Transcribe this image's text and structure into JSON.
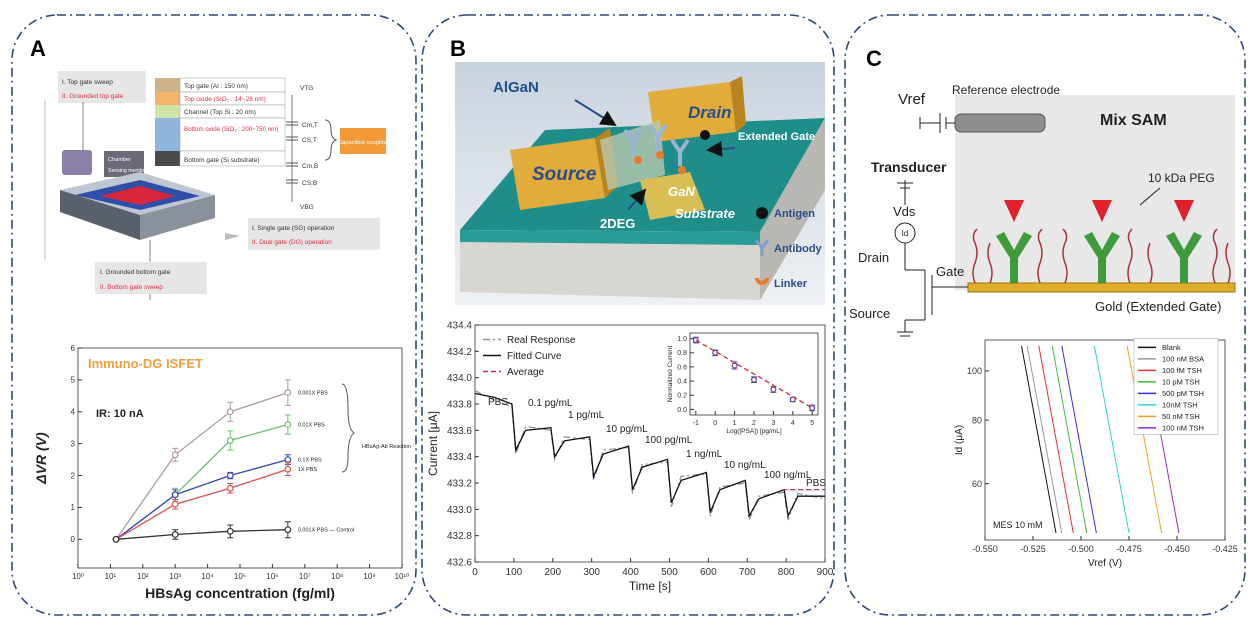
{
  "panel_labels": [
    "A",
    "B",
    "C"
  ],
  "diagram": {
    "A": [
      "I. Top gate sweep",
      "II. Grounded top gate",
      "Top gate (Al : 150 nm)",
      "Top oxide (SiO₂ : 14~28 nm)",
      "Channel (Top Si : 20 nm)",
      "Bottom oxide (SiO₂ : 200~750 nm)",
      "Bottom gate (Si substrate)",
      "VTG",
      "Cm,T",
      "CS,T",
      "Cm,B",
      "CS,B",
      "VBG",
      "Capacitive coupling",
      "Chamber",
      "Sensing membrane",
      "I. Single gate (SG) operation",
      "II. Dual gate (DG) operation",
      "I. Grounded bottom gate",
      "II. Bottom gate sweep"
    ],
    "B": [
      "AlGaN",
      "Drain",
      "Source",
      "Extended Gate",
      "2DEG",
      "GaN",
      "Substrate",
      "Antigen",
      "Antibody",
      "Linker"
    ],
    "C": [
      "Vref",
      "Reference electrode",
      "Mix SAM",
      "10 kDa PEG",
      "Transducer",
      "Vds",
      "Id",
      "Drain",
      "Gate",
      "Source",
      "Gold (Extended Gate)"
    ]
  },
  "chart_data": [
    {
      "type": "line",
      "annotations": [
        "Immuno-DG ISFET",
        "IR: 10 nA",
        "HBsAg-Ab Reaction"
      ],
      "x_label": "HBsAg concentration (fg/ml)",
      "y_label": "ΔVR (V)",
      "x_log": true,
      "xlim": [
        1,
        10000000000
      ],
      "xticks": [
        {
          "value": 1,
          "label": "10⁰"
        },
        {
          "value": 10,
          "label": "10¹"
        },
        {
          "value": 100,
          "label": "10²"
        },
        {
          "value": 1000,
          "label": "10³"
        },
        {
          "value": 10000,
          "label": "10⁴"
        },
        {
          "value": 100000,
          "label": "10⁵"
        },
        {
          "value": 1000000,
          "label": "10⁶"
        },
        {
          "value": 10000000,
          "label": "10⁷"
        },
        {
          "value": 100000000,
          "label": "10⁸"
        },
        {
          "value": 1000000000,
          "label": "10⁹"
        },
        {
          "value": 10000000000,
          "label": "10¹⁰"
        }
      ],
      "ylim": [
        -0.9,
        6
      ],
      "yticks": [
        0,
        1,
        2,
        3,
        4,
        5,
        6
      ],
      "legend": "right",
      "x": [
        15,
        1000,
        50000,
        3000000
      ],
      "series": [
        {
          "name": "0.001X PBS",
          "color": "#b09a9a",
          "marker": true,
          "values": [
            0,
            2.65,
            4.0,
            4.6
          ],
          "errors": [
            0,
            0.2,
            0.3,
            0.4
          ]
        },
        {
          "name": "0.01X PBS",
          "color": "#6fbf6f",
          "marker": true,
          "values": [
            0,
            1.4,
            3.1,
            3.6
          ],
          "errors": [
            0,
            0.2,
            0.3,
            0.3
          ]
        },
        {
          "name": "0.1X PBS",
          "color": "#3848b8",
          "marker": true,
          "values": [
            0,
            1.4,
            2.0,
            2.5
          ],
          "errors": [
            0,
            0.15,
            0.1,
            0.15
          ]
        },
        {
          "name": "1X PBS",
          "color": "#e05050",
          "marker": true,
          "values": [
            0,
            1.1,
            1.6,
            2.2
          ],
          "errors": [
            0,
            0.15,
            0.15,
            0.2
          ]
        },
        {
          "name": "0.001X PBS — Control",
          "color": "#333333",
          "marker": true,
          "values": [
            0,
            0.15,
            0.25,
            0.3
          ],
          "errors": [
            0,
            0.15,
            0.2,
            0.25
          ]
        }
      ]
    },
    {
      "type": "line",
      "annotations": [
        "PBS",
        "0.1 pg/mL",
        "1 pg/mL",
        "10 pg/mL",
        "100 pg/mL",
        "1 ng/mL",
        "10 ng/mL",
        "100 ng/mL",
        "PBS"
      ],
      "x_label": "Time [s]",
      "y_label": "Current [μA]",
      "xlim": [
        0,
        900
      ],
      "xticks": [
        0,
        100,
        200,
        300,
        400,
        500,
        600,
        700,
        800,
        900
      ],
      "ylim": [
        432.6,
        434.4
      ],
      "yticks": [
        432.6,
        432.8,
        {
          "value": 433,
          "label": "433.0"
        },
        433.2,
        433.4,
        433.6,
        433.8,
        {
          "value": 434,
          "label": "434.0"
        },
        434.2,
        434.4
      ],
      "legend": "upper left",
      "series": [
        {
          "name": "Real Response",
          "color": "#7f93a8",
          "dash": "dashdot",
          "x": [
            0,
            50,
            95,
            105,
            130,
            195,
            205,
            230,
            295,
            305,
            330,
            395,
            405,
            430,
            495,
            505,
            530,
            595,
            605,
            630,
            695,
            705,
            730,
            795,
            805,
            830,
            900
          ],
          "values": [
            433.9,
            433.83,
            433.78,
            433.42,
            433.63,
            433.6,
            433.38,
            433.55,
            433.53,
            433.22,
            433.45,
            433.47,
            433.12,
            433.34,
            433.36,
            433.02,
            433.25,
            433.27,
            432.95,
            433.17,
            433.2,
            432.92,
            433.1,
            433.13,
            432.92,
            433.12,
            433.08
          ]
        },
        {
          "name": "Fitted Curve",
          "color": "#111111",
          "x": [
            0,
            50,
            95,
            105,
            130,
            195,
            205,
            230,
            295,
            305,
            330,
            395,
            405,
            430,
            495,
            505,
            530,
            595,
            605,
            630,
            695,
            705,
            730,
            795,
            805,
            830,
            900
          ],
          "values": [
            433.88,
            433.85,
            433.8,
            433.45,
            433.6,
            433.62,
            433.4,
            433.52,
            433.55,
            433.25,
            433.42,
            433.48,
            433.15,
            433.32,
            433.38,
            433.05,
            433.22,
            433.28,
            432.98,
            433.15,
            433.22,
            432.95,
            433.08,
            433.15,
            432.95,
            433.1,
            433.1
          ]
        },
        {
          "name": "Average",
          "color": "#c0304a",
          "dash": "dashed",
          "x": [
            790,
            900
          ],
          "values": [
            433.15,
            433.15
          ]
        }
      ]
    },
    {
      "type": "scatter",
      "x_label": "Log([PSA]) [pg/mL]",
      "y_label": "Normalized Current",
      "xlim": [
        -1.3,
        5.3
      ],
      "xticks": [
        -1,
        0,
        1,
        2,
        3,
        4,
        5
      ],
      "ylim": [
        -0.08,
        1.08
      ],
      "yticks": [
        {
          "value": 0,
          "label": "0.0"
        },
        0.2,
        0.4,
        0.6,
        0.8,
        {
          "value": 1,
          "label": "1.0"
        }
      ],
      "x": [
        -1,
        0,
        1,
        2,
        3,
        4,
        5
      ],
      "series": [
        {
          "color": "#5a3fa0",
          "marker": true,
          "line": false,
          "values": [
            0.98,
            0.8,
            0.62,
            0.42,
            0.28,
            0.14,
            0.02
          ],
          "errors": [
            0.04,
            0.04,
            0.05,
            0.04,
            0.04,
            0.03,
            0.04
          ]
        },
        {
          "color": "#d03030",
          "dash": "dashed",
          "x": [
            -1,
            5
          ],
          "values": [
            0.98,
            0.02
          ]
        }
      ]
    },
    {
      "type": "line",
      "annotations": [
        "MES 10 mM"
      ],
      "x_label": "Vref (V)",
      "y_label": "Id (μA)",
      "y_log": true,
      "xlim": [
        -0.55,
        -0.425
      ],
      "xticks": [
        {
          "value": -0.55,
          "label": "-0.550"
        },
        {
          "value": -0.525,
          "label": "-0.525"
        },
        {
          "value": -0.5,
          "label": "-0.500"
        },
        {
          "value": -0.475,
          "label": "-0.475"
        },
        {
          "value": -0.45,
          "label": "-0.450"
        },
        {
          "value": -0.425,
          "label": "-0.425"
        }
      ],
      "ylim": [
        46.5,
        115
      ],
      "yticks": [
        60,
        80,
        100
      ],
      "legend": "upper right",
      "series": [
        {
          "name": "Blank",
          "color": "#111111",
          "x": [
            -0.531,
            -0.513
          ],
          "values": [
            112,
            48
          ]
        },
        {
          "name": "100 nM BSA",
          "color": "#999999",
          "x": [
            -0.528,
            -0.51
          ],
          "values": [
            112,
            48
          ]
        },
        {
          "name": "100 fM  TSH",
          "color": "#e03030",
          "x": [
            -0.522,
            -0.504
          ],
          "values": [
            112,
            48
          ]
        },
        {
          "name": "10 pM  TSH",
          "color": "#3cc03c",
          "x": [
            -0.515,
            -0.497
          ],
          "values": [
            112,
            48
          ]
        },
        {
          "name": "500 pM TSH",
          "color": "#3030e0",
          "x": [
            -0.51,
            -0.492
          ],
          "values": [
            112,
            48
          ]
        },
        {
          "name": "10nM   TSH",
          "color": "#30d0d0",
          "x": [
            -0.493,
            -0.475
          ],
          "values": [
            112,
            48
          ]
        },
        {
          "name": "50 nM  TSH",
          "color": "#f0a020",
          "x": [
            -0.476,
            -0.458
          ],
          "values": [
            112,
            48
          ]
        },
        {
          "name": "100 nM TSH",
          "color": "#9030c0",
          "x": [
            -0.467,
            -0.449
          ],
          "values": [
            112,
            48
          ]
        }
      ]
    }
  ]
}
